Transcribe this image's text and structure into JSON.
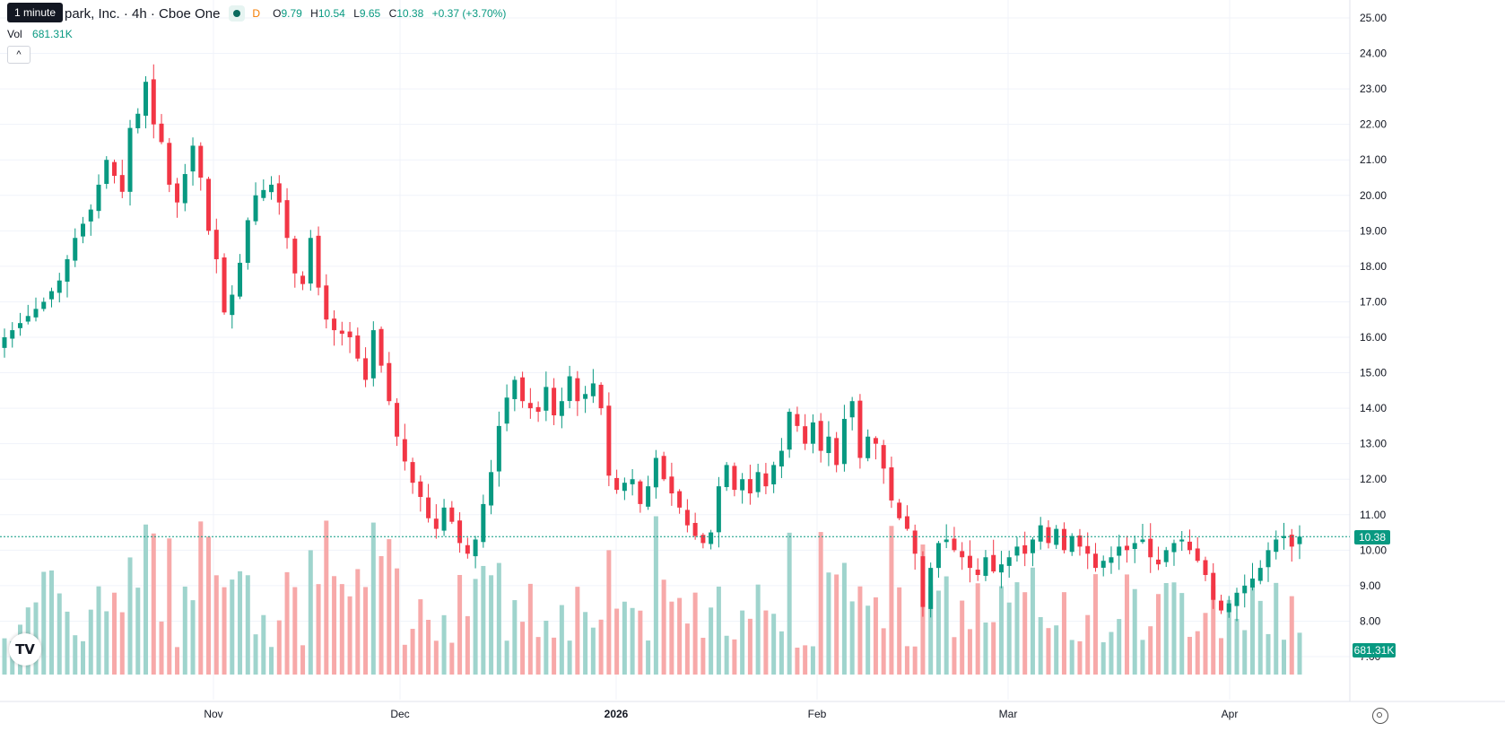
{
  "legend": {
    "symbol_title": "park, Inc. · 4h · Cboe One",
    "tooltip": "1 minute",
    "d_flag": "D",
    "open_label": "O",
    "open": "9.79",
    "high_label": "H",
    "high": "10.54",
    "low_label": "L",
    "low": "9.65",
    "close_label": "C",
    "close": "10.38",
    "change": "+0.37 (+3.70%)"
  },
  "volume": {
    "label": "Vol",
    "value": "681.31K"
  },
  "collapse_button": "^",
  "price_tag": "10.38",
  "volume_tag": "681.31K",
  "logo_text": "TV",
  "colors": {
    "up": "#089981",
    "down": "#f23645",
    "up_volume": "#9fd4cd",
    "down_volume": "#f7a9a9",
    "grid": "#f0f3fa"
  },
  "chart_data": {
    "type": "candlestick",
    "interval": "4h",
    "exchange": "Cboe One",
    "y_range": [
      7,
      25
    ],
    "y_ticks": [
      "25.00",
      "24.00",
      "23.00",
      "22.00",
      "21.00",
      "20.00",
      "19.00",
      "18.00",
      "17.00",
      "16.00",
      "15.00",
      "14.00",
      "13.00",
      "12.00",
      "11.00",
      "10.00",
      "9.00",
      "8.00",
      "7.00"
    ],
    "x_ticks": [
      "Nov",
      "Dec",
      "2026",
      "Feb",
      "Mar",
      "Apr"
    ],
    "last_price": 10.38,
    "close_anchors": [
      [
        0,
        16.0
      ],
      [
        3,
        16.6
      ],
      [
        5,
        17.0
      ],
      [
        7,
        17.6
      ],
      [
        9,
        18.8
      ],
      [
        11,
        19.6
      ],
      [
        13,
        21.0
      ],
      [
        15,
        20.1
      ],
      [
        16,
        21.9
      ],
      [
        17,
        22.3
      ],
      [
        18,
        23.2
      ],
      [
        19,
        22.0
      ],
      [
        20,
        21.5
      ],
      [
        21,
        20.3
      ],
      [
        22,
        19.8
      ],
      [
        24,
        21.4
      ],
      [
        25,
        20.5
      ],
      [
        26,
        19.0
      ],
      [
        27,
        18.2
      ],
      [
        28,
        16.7
      ],
      [
        29,
        17.2
      ],
      [
        30,
        18.1
      ],
      [
        31,
        19.3
      ],
      [
        32,
        20.0
      ],
      [
        34,
        20.3
      ],
      [
        35,
        19.8
      ],
      [
        36,
        18.8
      ],
      [
        37,
        17.8
      ],
      [
        38,
        17.5
      ],
      [
        39,
        18.8
      ],
      [
        40,
        17.4
      ],
      [
        41,
        16.5
      ],
      [
        42,
        16.2
      ],
      [
        44,
        16.0
      ],
      [
        45,
        15.4
      ],
      [
        46,
        14.8
      ],
      [
        47,
        16.2
      ],
      [
        48,
        15.2
      ],
      [
        49,
        14.2
      ],
      [
        50,
        13.2
      ],
      [
        51,
        12.5
      ],
      [
        52,
        11.9
      ],
      [
        53,
        11.5
      ],
      [
        54,
        10.9
      ],
      [
        55,
        10.6
      ],
      [
        56,
        11.2
      ],
      [
        57,
        10.8
      ],
      [
        58,
        10.2
      ],
      [
        59,
        9.9
      ],
      [
        60,
        10.3
      ],
      [
        61,
        11.3
      ],
      [
        62,
        12.2
      ],
      [
        63,
        13.5
      ],
      [
        64,
        14.3
      ],
      [
        65,
        14.8
      ],
      [
        66,
        14.2
      ],
      [
        67,
        14.0
      ],
      [
        68,
        13.9
      ],
      [
        69,
        14.6
      ],
      [
        70,
        13.8
      ],
      [
        71,
        14.2
      ],
      [
        72,
        14.9
      ],
      [
        73,
        14.2
      ],
      [
        74,
        14.4
      ],
      [
        75,
        14.7
      ],
      [
        76,
        14.0
      ],
      [
        77,
        12.1
      ],
      [
        78,
        11.7
      ],
      [
        79,
        11.9
      ],
      [
        80,
        12.0
      ],
      [
        81,
        11.3
      ],
      [
        82,
        11.8
      ],
      [
        83,
        12.6
      ],
      [
        84,
        12.0
      ],
      [
        85,
        11.6
      ],
      [
        86,
        11.2
      ],
      [
        87,
        10.7
      ],
      [
        88,
        10.4
      ],
      [
        89,
        10.2
      ],
      [
        90,
        10.5
      ],
      [
        91,
        11.8
      ],
      [
        92,
        12.4
      ],
      [
        93,
        11.7
      ],
      [
        94,
        12.0
      ],
      [
        95,
        11.6
      ],
      [
        96,
        12.2
      ],
      [
        97,
        11.8
      ],
      [
        98,
        12.4
      ],
      [
        99,
        12.8
      ],
      [
        100,
        13.9
      ],
      [
        101,
        13.5
      ],
      [
        102,
        13.0
      ],
      [
        103,
        13.6
      ],
      [
        104,
        12.8
      ],
      [
        105,
        13.2
      ],
      [
        106,
        12.4
      ],
      [
        107,
        13.7
      ],
      [
        108,
        14.2
      ],
      [
        109,
        12.6
      ],
      [
        110,
        13.2
      ],
      [
        111,
        13.0
      ],
      [
        112,
        12.3
      ],
      [
        113,
        11.4
      ],
      [
        114,
        10.9
      ],
      [
        115,
        10.6
      ],
      [
        116,
        9.9
      ],
      [
        117,
        8.4
      ],
      [
        118,
        9.5
      ],
      [
        119,
        10.2
      ],
      [
        120,
        10.3
      ],
      [
        121,
        10.0
      ],
      [
        122,
        9.8
      ],
      [
        123,
        9.5
      ],
      [
        124,
        9.3
      ],
      [
        125,
        9.8
      ],
      [
        126,
        9.4
      ],
      [
        127,
        9.6
      ],
      [
        128,
        9.8
      ],
      [
        129,
        10.1
      ],
      [
        130,
        9.9
      ],
      [
        131,
        10.3
      ],
      [
        132,
        10.7
      ],
      [
        133,
        10.2
      ],
      [
        134,
        10.6
      ],
      [
        135,
        10.0
      ],
      [
        136,
        10.4
      ],
      [
        137,
        10.1
      ],
      [
        138,
        9.9
      ],
      [
        139,
        9.5
      ],
      [
        140,
        9.7
      ],
      [
        141,
        9.8
      ],
      [
        142,
        10.1
      ],
      [
        143,
        10.0
      ],
      [
        144,
        10.2
      ],
      [
        145,
        10.3
      ],
      [
        146,
        9.8
      ],
      [
        147,
        9.6
      ],
      [
        148,
        10.0
      ],
      [
        149,
        10.2
      ],
      [
        150,
        10.3
      ],
      [
        151,
        10.0
      ],
      [
        152,
        9.7
      ],
      [
        153,
        9.3
      ],
      [
        154,
        8.6
      ],
      [
        155,
        8.3
      ],
      [
        156,
        8.5
      ],
      [
        157,
        8.8
      ],
      [
        158,
        9.0
      ],
      [
        159,
        9.2
      ],
      [
        160,
        9.5
      ],
      [
        161,
        10.0
      ],
      [
        162,
        10.3
      ],
      [
        163,
        10.4
      ],
      [
        164,
        10.1
      ],
      [
        165,
        10.38
      ]
    ]
  }
}
